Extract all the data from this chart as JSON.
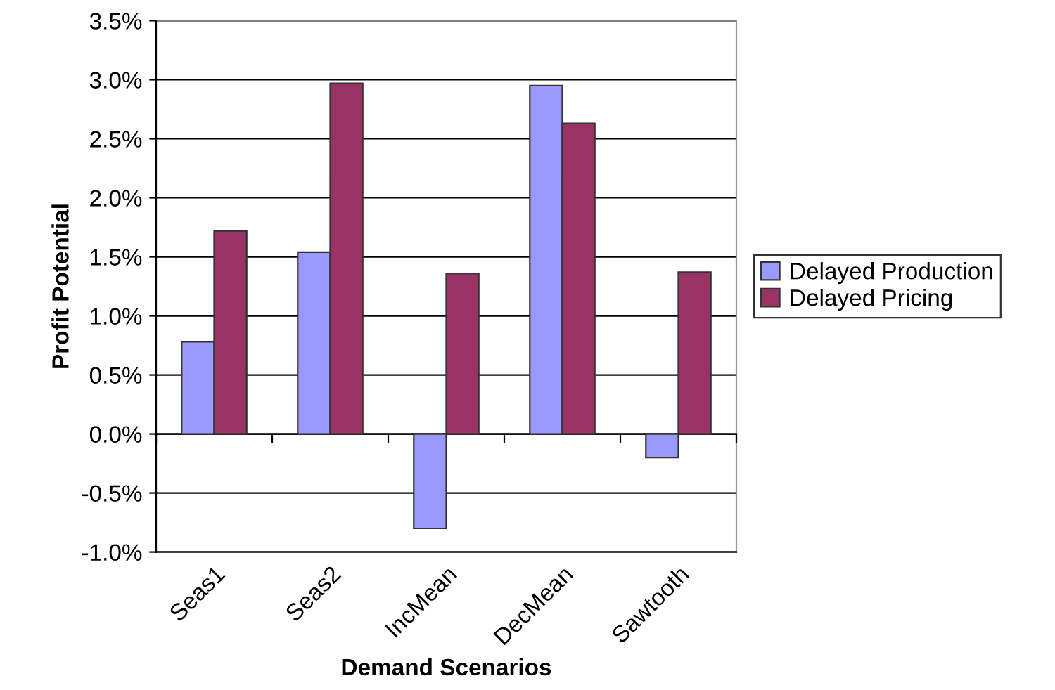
{
  "chart_data": {
    "type": "bar",
    "xlabel": "Demand Scenarios",
    "ylabel": "Profit Potential",
    "categories": [
      "Seas1",
      "Seas2",
      "IncMean",
      "DecMean",
      "Sawtooth"
    ],
    "series": [
      {
        "name": "Delayed Production",
        "color": "#9999ff",
        "values": [
          0.78,
          1.54,
          -0.8,
          2.95,
          -0.2
        ]
      },
      {
        "name": "Delayed Pricing",
        "color": "#993366",
        "values": [
          1.72,
          2.97,
          1.36,
          2.63,
          1.37
        ]
      }
    ],
    "ylim": [
      -1.0,
      3.5
    ],
    "yticks": [
      {
        "value": -1.0,
        "label": "-1.0%"
      },
      {
        "value": -0.5,
        "label": "-0.5%"
      },
      {
        "value": 0.0,
        "label": "0.0%"
      },
      {
        "value": 0.5,
        "label": "0.5%"
      },
      {
        "value": 1.0,
        "label": "1.0%"
      },
      {
        "value": 1.5,
        "label": "1.5%"
      },
      {
        "value": 2.0,
        "label": "2.0%"
      },
      {
        "value": 2.5,
        "label": "2.5%"
      },
      {
        "value": 3.0,
        "label": "3.0%"
      },
      {
        "value": 3.5,
        "label": "3.5%"
      }
    ],
    "grid": "y",
    "legend": "right"
  }
}
